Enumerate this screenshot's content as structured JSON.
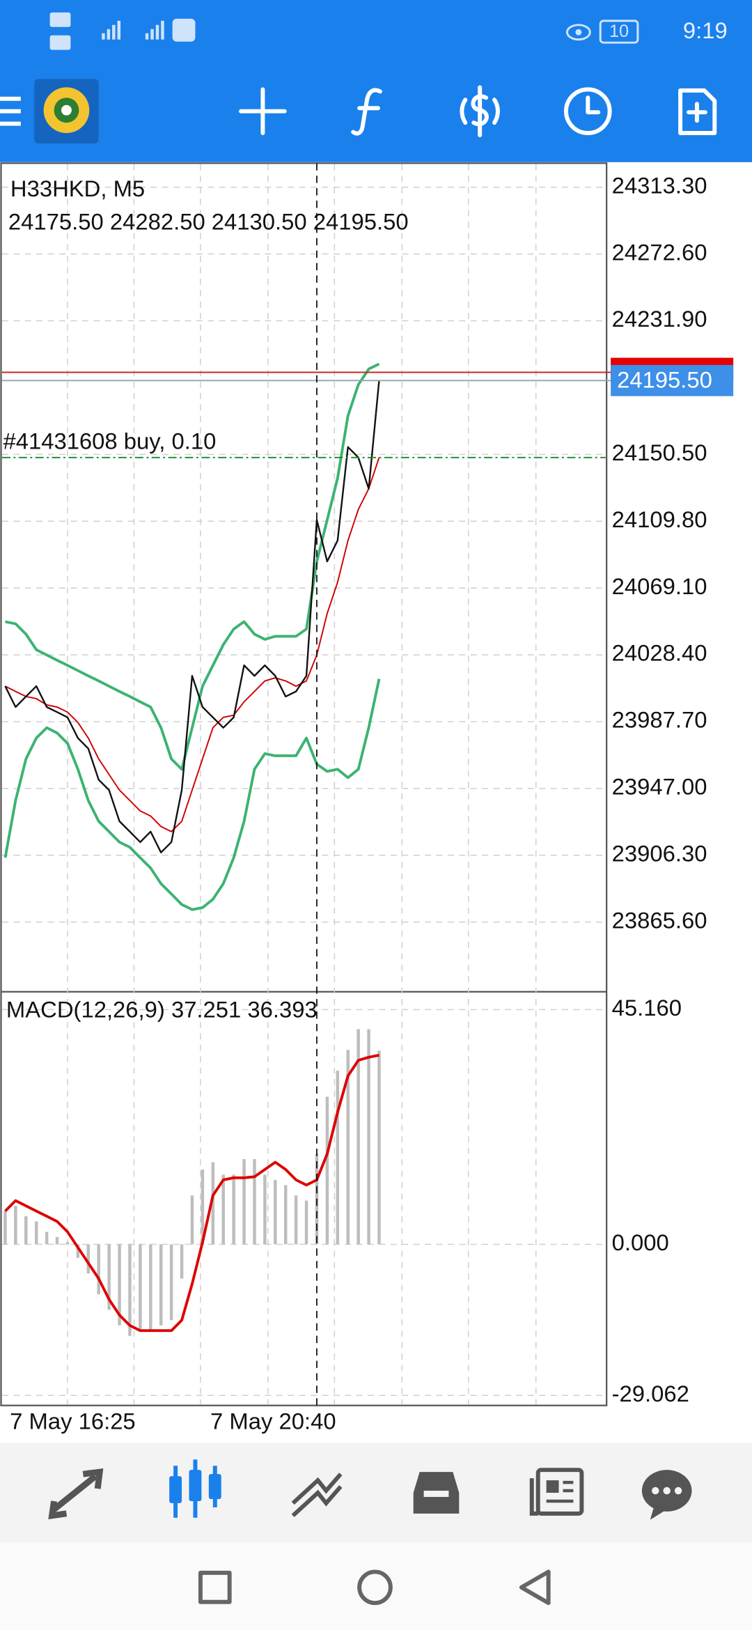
{
  "status_bar": {
    "time": "9:19",
    "battery": "10"
  },
  "time_labels": [
    "7 May 16:25",
    "7 May 20:40"
  ],
  "chart_data": [
    {
      "type": "price",
      "title": "H33HKD, M5",
      "subtitle": "24175.50 24282.50 24130.50 24195.50",
      "annotation": "#41431608 buy, 0.10",
      "ylim": [
        23823.8,
        24327.9
      ],
      "yticks": [
        {
          "value": 24313.3,
          "label": "24313.30"
        },
        {
          "value": 24272.6,
          "label": "24272.60"
        },
        {
          "value": 24231.9,
          "label": "24231.90"
        },
        {
          "value": 24150.5,
          "label": "24150.50"
        },
        {
          "value": 24109.8,
          "label": "24109.80"
        },
        {
          "value": 24069.1,
          "label": "24069.10"
        },
        {
          "value": 24028.4,
          "label": "24028.40"
        },
        {
          "value": 23987.7,
          "label": "23987.70"
        },
        {
          "value": 23947,
          "label": "23947.00"
        },
        {
          "value": 23906.3,
          "label": "23906.30"
        },
        {
          "value": 23865.6,
          "label": "23865.60"
        }
      ],
      "grid": true,
      "bid": 24195.5,
      "bid_label": "24195.50",
      "ask": 24200.5,
      "order_price": 24148.6,
      "series": [
        {
          "color": "#111111",
          "values": [
            24009.3,
            23996.6,
            24003.0,
            24009.3,
            23996.6,
            23993.5,
            23990.3,
            23977.7,
            23971.3,
            23952.3,
            23946.0,
            23927.0,
            23920.7,
            23914.3,
            23920.7,
            23908.0,
            23914.3,
            23946.0,
            24015.6,
            23996.6,
            23990.3,
            23984.0,
            23990.3,
            24022.0,
            24015.6,
            24022.0,
            24015.6,
            24003.0,
            24006.1,
            24015.6,
            24110.6,
            24085.3,
            24098.0,
            24155.0,
            24148.6,
            24129.6,
            24195.5
          ]
        },
        {
          "color": "#3cb371",
          "values": [
            24048.6,
            24047.3,
            24041.0,
            24031.5,
            24028.3,
            24025.1,
            24022.0,
            24018.8,
            24015.6,
            24012.5,
            24009.3,
            24006.1,
            24003.0,
            23999.8,
            23996.6,
            23984.0,
            23965.0,
            23958.7,
            23984.0,
            24009.3,
            24022.0,
            24034.6,
            24044.1,
            24048.6,
            24041.0,
            24037.8,
            24039.7,
            24039.7,
            24039.7,
            24044.1,
            24085.3,
            24110.6,
            24136.0,
            24174.0,
            24193.0,
            24202.5,
            24205.6
          ]
        },
        {
          "color": "#3cb371",
          "values": [
            23904.8,
            23939.7,
            23965.0,
            23977.7,
            23984.0,
            23980.8,
            23974.5,
            23958.7,
            23939.7,
            23927.0,
            23920.7,
            23914.3,
            23911.2,
            23904.8,
            23898.5,
            23889.0,
            23882.7,
            23876.3,
            23873.2,
            23874.4,
            23879.5,
            23889.0,
            23904.8,
            23927.0,
            23958.7,
            23968.2,
            23966.9,
            23966.9,
            23966.9,
            23977.7,
            23961.8,
            23957.4,
            23958.7,
            23953.6,
            23958.7,
            23984.0,
            24013.7
          ]
        },
        {
          "color": "#d00000",
          "values": [
            24009.3,
            24006.1,
            24003.0,
            24001.7,
            23997.9,
            23996.6,
            23993.5,
            23987.2,
            23977.7,
            23965.0,
            23955.5,
            23946.0,
            23939.7,
            23933.3,
            23930.2,
            23923.8,
            23920.7,
            23927.0,
            23946.0,
            23965.0,
            23984.0,
            23990.3,
            23991.6,
            23999.8,
            24006.1,
            24012.5,
            24014.4,
            24012.5,
            24009.3,
            24012.5,
            24028.3,
            24053.6,
            24072.6,
            24098.0,
            24117.0,
            24129.6,
            24148.6
          ]
        }
      ]
    },
    {
      "type": "macd",
      "title": "MACD(12,26,9) 37.251 36.393",
      "ylim": [
        -31,
        48.4
      ],
      "yticks": [
        {
          "value": 45.16,
          "label": "45.160"
        },
        {
          "value": 0,
          "label": "0.000"
        },
        {
          "value": -29.062,
          "label": "-29.062"
        }
      ],
      "grid": true,
      "series": [
        {
          "color": "#bdbdbd",
          "values": [
            6.4,
            7.4,
            5.4,
            4.4,
            2.4,
            1.4,
            0.4,
            -2.6,
            -5.6,
            -9.6,
            -12.6,
            -15.6,
            -17.6,
            -16.6,
            -16.6,
            -15.6,
            -14.6,
            -6.6,
            9.4,
            14.4,
            15.8,
            13.4,
            13.4,
            16.4,
            16.4,
            13.4,
            12.4,
            11.4,
            9.4,
            8.4,
            17.4,
            28.4,
            33.4,
            37.4,
            41.4,
            41.4,
            37.251
          ]
        },
        {
          "color": "#dd0000",
          "values": [
            6.4,
            8.4,
            7.4,
            6.4,
            5.4,
            4.4,
            2.4,
            -0.6,
            -3.6,
            -6.6,
            -10.6,
            -13.6,
            -15.6,
            -16.6,
            -16.6,
            -16.6,
            -16.6,
            -14.6,
            -7.6,
            0.4,
            9.4,
            12.4,
            12.8,
            12.8,
            13.0,
            14.4,
            15.8,
            14.4,
            12.4,
            11.4,
            12.4,
            17.4,
            25.4,
            32.4,
            35.4,
            36.0,
            36.393
          ]
        }
      ]
    }
  ]
}
